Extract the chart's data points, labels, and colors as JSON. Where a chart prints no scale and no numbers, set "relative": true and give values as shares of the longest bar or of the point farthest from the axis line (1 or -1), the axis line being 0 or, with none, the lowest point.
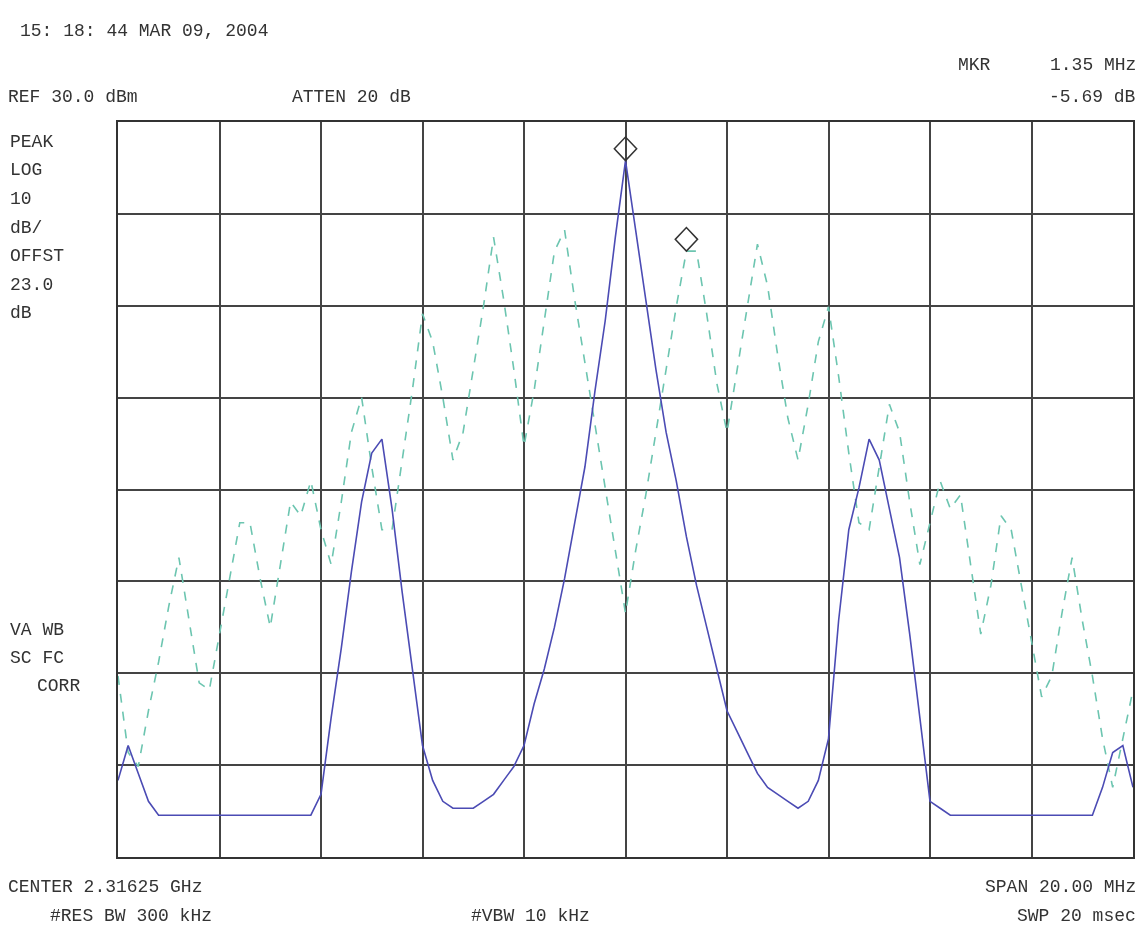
{
  "chart_data": {
    "type": "line",
    "relative": true,
    "title": "15: 18: 44 MAR 09, 2004",
    "annotations": [
      "MKR",
      "1.35 MHz",
      "-5.69 dB",
      "REF 30.0 dBm",
      "ATTEN 20 dB",
      "PEAK",
      "LOG",
      "10",
      "dB/",
      "OFFST",
      "23.0",
      "dB",
      "VA WB",
      "SC FC",
      "CORR",
      "CENTER 2.31625 GHz",
      "SPAN 20.00 MHz",
      "#RES BW 300 kHz",
      "#VBW 10 kHz",
      "SWP 20 msec"
    ],
    "categories": [
      null,
      null,
      null,
      null,
      null,
      null,
      null,
      null,
      null,
      null,
      null,
      null,
      null,
      null,
      null,
      null,
      null,
      null,
      null,
      null,
      null,
      null,
      null,
      null,
      null,
      null,
      null,
      null,
      null,
      null,
      null,
      null,
      null,
      null,
      null,
      null,
      null,
      null,
      null,
      null,
      null,
      null,
      null,
      null,
      null,
      null,
      null,
      null,
      null,
      null,
      null,
      null,
      null,
      null,
      null,
      null,
      null,
      null,
      null,
      null,
      null,
      null,
      null,
      null,
      null,
      null,
      null,
      null,
      null,
      null,
      null,
      null,
      null,
      null,
      null,
      null,
      null,
      null,
      null,
      null,
      null,
      null,
      null,
      null,
      null,
      null,
      null,
      null,
      null,
      null,
      null,
      null,
      null,
      null,
      null,
      null,
      null,
      null,
      null,
      null,
      null
    ],
    "grid": true,
    "series": [
      {
        "color": "#6cc5b0",
        "line_style": "dashed",
        "marker": "none",
        "values": [
          0.26,
          0.15,
          0.13,
          0.21,
          0.28,
          0.36,
          0.43,
          0.34,
          0.25,
          0.24,
          0.32,
          0.4,
          0.48,
          0.48,
          0.4,
          0.33,
          0.42,
          0.51,
          0.49,
          0.54,
          0.47,
          0.42,
          0.51,
          0.61,
          0.66,
          0.56,
          0.47,
          0.47,
          0.57,
          0.67,
          0.78,
          0.74,
          0.66,
          0.57,
          0.61,
          0.7,
          0.79,
          0.89,
          0.8,
          0.7,
          0.59,
          0.67,
          0.77,
          0.87,
          0.9,
          0.8,
          0.71,
          0.62,
          0.53,
          0.44,
          0.35,
          0.44,
          0.52,
          0.61,
          0.7,
          0.79,
          0.87,
          0.87,
          0.78,
          0.68,
          0.61,
          0.7,
          0.79,
          0.88,
          0.82,
          0.72,
          0.63,
          0.57,
          0.65,
          0.74,
          0.79,
          0.69,
          0.58,
          0.48,
          0.47,
          0.56,
          0.65,
          0.61,
          0.51,
          0.42,
          0.48,
          0.54,
          0.5,
          0.52,
          0.42,
          0.32,
          0.39,
          0.49,
          0.47,
          0.39,
          0.31,
          0.23,
          0.26,
          0.35,
          0.43,
          0.34,
          0.26,
          0.17,
          0.1,
          0.17,
          0.24
        ]
      },
      {
        "color": "#4b4bb4",
        "line_style": "solid",
        "marker": "none",
        "values": [
          0.11,
          0.16,
          0.12,
          0.08,
          0.06,
          0.06,
          0.06,
          0.06,
          0.06,
          0.06,
          0.06,
          0.06,
          0.06,
          0.06,
          0.06,
          0.06,
          0.06,
          0.06,
          0.06,
          0.06,
          0.09,
          0.2,
          0.3,
          0.41,
          0.51,
          0.58,
          0.6,
          0.5,
          0.38,
          0.27,
          0.16,
          0.11,
          0.08,
          0.07,
          0.07,
          0.07,
          0.08,
          0.09,
          0.11,
          0.13,
          0.16,
          0.22,
          0.27,
          0.33,
          0.4,
          0.48,
          0.56,
          0.67,
          0.77,
          0.89,
          1.0,
          0.9,
          0.8,
          0.7,
          0.61,
          0.54,
          0.46,
          0.39,
          0.33,
          0.27,
          0.21,
          0.18,
          0.15,
          0.12,
          0.1,
          0.09,
          0.08,
          0.07,
          0.08,
          0.11,
          0.17,
          0.34,
          0.47,
          0.53,
          0.6,
          0.57,
          0.5,
          0.43,
          0.32,
          0.2,
          0.08,
          0.07,
          0.06,
          0.06,
          0.06,
          0.06,
          0.06,
          0.06,
          0.06,
          0.06,
          0.06,
          0.06,
          0.06,
          0.06,
          0.06,
          0.06,
          0.06,
          0.1,
          0.15,
          0.16,
          0.1
        ]
      }
    ]
  }
}
